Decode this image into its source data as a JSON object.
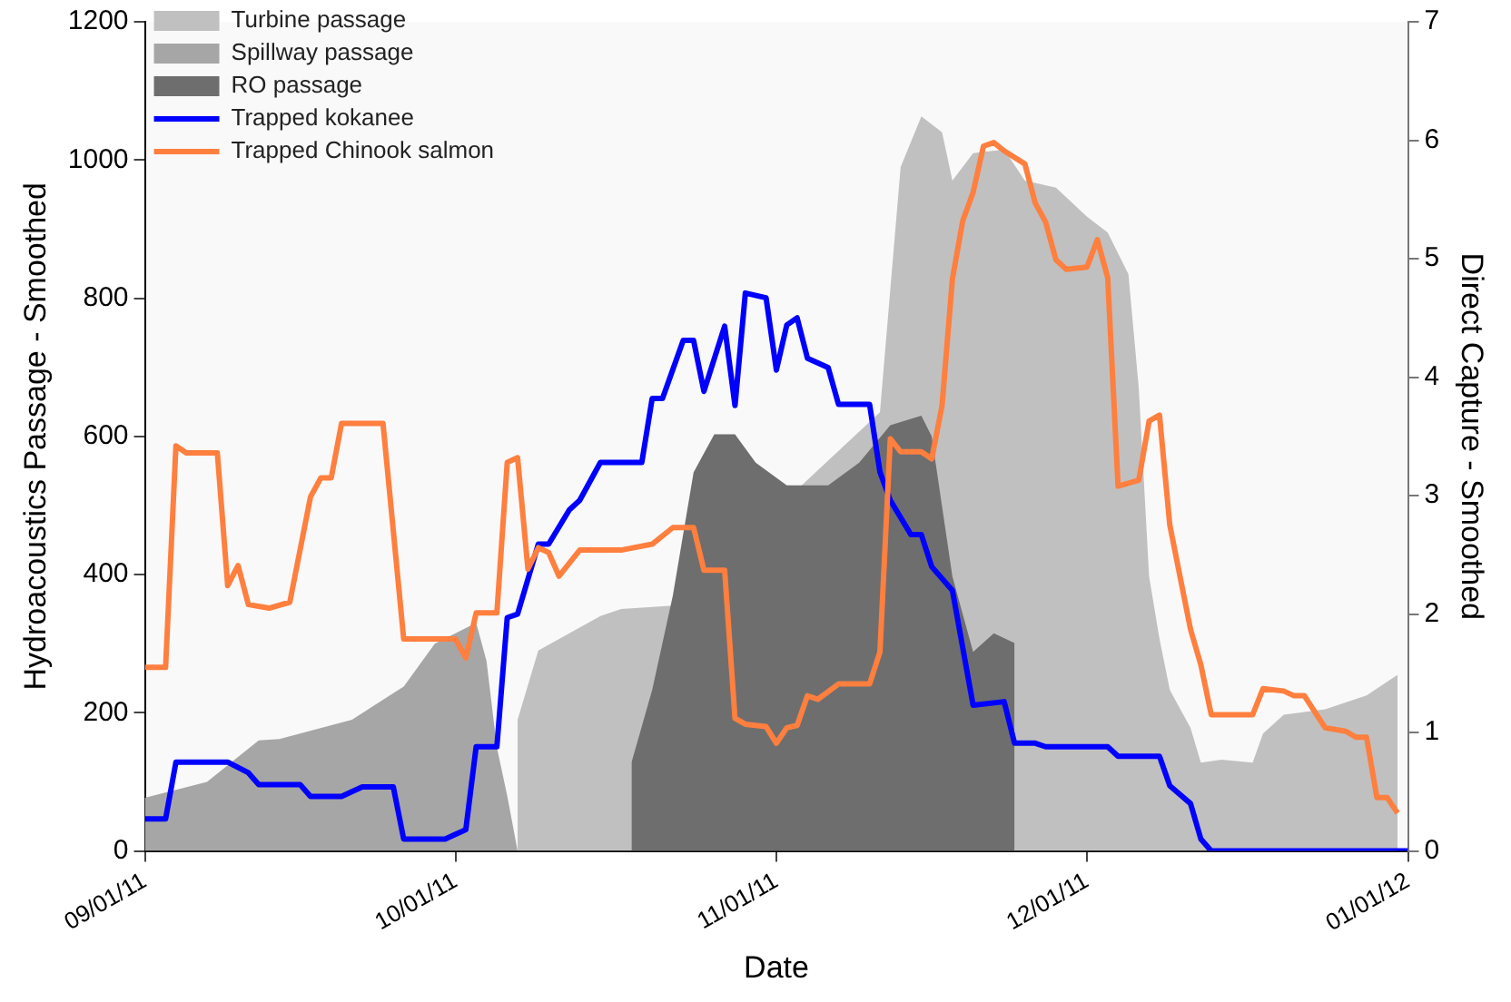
{
  "chart_data": {
    "type": "area",
    "xlabel": "Date",
    "ylabel": "Hydroacoustics Passage - Smoothed",
    "y2label": "Direct Capture - Smoothed",
    "xlim": [
      "2011-09-01",
      "2012-01-01"
    ],
    "xticks": [
      {
        "value": "2011-09-01",
        "label": "09/01/11"
      },
      {
        "value": "2011-10-01",
        "label": "10/01/11"
      },
      {
        "value": "2011-11-01",
        "label": "11/01/11"
      },
      {
        "value": "2011-12-01",
        "label": "12/01/11"
      },
      {
        "value": "2012-01-01",
        "label": "01/01/12"
      }
    ],
    "ylim": [
      0,
      1200
    ],
    "yticks": [
      0,
      200,
      400,
      600,
      800,
      1000,
      1200
    ],
    "y2lim": [
      0,
      7
    ],
    "y2ticks": [
      0,
      1,
      2,
      3,
      4,
      5,
      6,
      7
    ],
    "grid": false,
    "legend": "top left",
    "series": [
      {
        "name": "Turbine passage",
        "color": "#c0c0c0",
        "x": [
          "2011-10-07",
          "2011-10-09",
          "2011-10-12",
          "2011-10-15",
          "2011-10-17",
          "2011-10-22",
          "2011-11-11",
          "2011-11-13",
          "2011-11-15",
          "2011-11-17",
          "2011-11-18",
          "2011-11-20",
          "2011-11-23",
          "2011-11-25",
          "2011-11-28",
          "2011-12-01",
          "2011-12-03",
          "2011-12-05",
          "2011-12-06",
          "2011-12-07",
          "2011-12-08",
          "2011-12-09",
          "2011-12-11",
          "2011-12-12",
          "2011-12-14",
          "2011-12-17",
          "2011-12-18",
          "2011-12-20",
          "2011-12-24",
          "2011-12-28",
          "2011-12-31"
        ],
        "values": [
          190,
          290,
          315,
          340,
          350,
          355,
          635,
          990,
          1063,
          1040,
          970,
          1010,
          1015,
          970,
          960,
          918,
          895,
          835,
          670,
          397,
          307,
          233,
          178,
          128,
          132,
          128,
          170,
          197,
          205,
          225,
          255
        ]
      },
      {
        "name": "Spillway passage",
        "color": "#a6a6a6",
        "x": [
          "2011-09-01",
          "2011-09-07",
          "2011-09-12",
          "2011-09-14",
          "2011-09-21",
          "2011-09-26",
          "2011-09-29",
          "2011-10-03",
          "2011-10-04",
          "2011-10-05",
          "2011-10-06",
          "2011-10-07"
        ],
        "values": [
          77,
          100,
          160,
          162,
          190,
          238,
          300,
          330,
          275,
          150,
          80,
          0
        ]
      },
      {
        "name": "RO passage",
        "color": "#6e6e6e",
        "x": [
          "2011-10-18",
          "2011-10-20",
          "2011-10-22",
          "2011-10-24",
          "2011-10-26",
          "2011-10-28",
          "2011-10-30",
          "2011-11-02",
          "2011-11-06",
          "2011-11-09",
          "2011-11-12",
          "2011-11-15",
          "2011-11-16",
          "2011-11-18",
          "2011-11-20",
          "2011-11-22",
          "2011-11-24"
        ],
        "values": [
          128,
          233,
          370,
          548,
          603,
          603,
          562,
          529,
          529,
          562,
          616,
          630,
          600,
          397,
          288,
          315,
          301
        ]
      },
      {
        "name": "Trapped kokanee",
        "type": "line",
        "axis": "y2",
        "color": "#0000ff",
        "x": [
          "2011-09-01",
          "2011-09-03",
          "2011-09-04",
          "2011-09-09",
          "2011-09-11",
          "2011-09-12",
          "2011-09-16",
          "2011-09-17",
          "2011-09-20",
          "2011-09-22",
          "2011-09-25",
          "2011-09-26",
          "2011-09-30",
          "2011-10-01",
          "2011-10-02",
          "2011-10-03",
          "2011-10-05",
          "2011-10-06",
          "2011-10-07",
          "2011-10-09",
          "2011-10-10",
          "2011-10-12",
          "2011-10-13",
          "2011-10-15",
          "2011-10-19",
          "2011-10-20",
          "2011-10-21",
          "2011-10-23",
          "2011-10-24",
          "2011-10-25",
          "2011-10-27",
          "2011-10-28",
          "2011-10-29",
          "2011-10-31",
          "2011-11-01",
          "2011-11-02",
          "2011-11-03",
          "2011-11-04",
          "2011-11-06",
          "2011-11-07",
          "2011-11-10",
          "2011-11-11",
          "2011-11-12",
          "2011-11-14",
          "2011-11-15",
          "2011-11-16",
          "2011-11-18",
          "2011-11-20",
          "2011-11-23",
          "2011-11-24",
          "2011-11-26",
          "2011-11-27",
          "2011-12-03",
          "2011-12-04",
          "2011-12-08",
          "2011-12-09",
          "2011-12-11",
          "2011-12-12",
          "2011-12-13",
          "2012-01-01"
        ],
        "values": [
          0.27,
          0.27,
          0.75,
          0.75,
          0.66,
          0.56,
          0.56,
          0.46,
          0.46,
          0.54,
          0.54,
          0.1,
          0.1,
          0.14,
          0.18,
          0.88,
          0.88,
          1.97,
          2.0,
          2.59,
          2.59,
          2.88,
          2.96,
          3.28,
          3.28,
          3.82,
          3.82,
          4.31,
          4.31,
          3.88,
          4.43,
          3.76,
          4.71,
          4.67,
          4.06,
          4.44,
          4.5,
          4.16,
          4.08,
          3.77,
          3.77,
          3.2,
          2.96,
          2.67,
          2.67,
          2.4,
          2.2,
          1.23,
          1.26,
          0.91,
          0.91,
          0.88,
          0.88,
          0.8,
          0.8,
          0.55,
          0.4,
          0.1,
          0,
          0
        ]
      },
      {
        "name": "Trapped Chinook salmon",
        "type": "line",
        "axis": "y2",
        "color": "#ff7f3f",
        "x": [
          "2011-09-01",
          "2011-09-03",
          "2011-09-04",
          "2011-09-05",
          "2011-09-08",
          "2011-09-09",
          "2011-09-10",
          "2011-09-11",
          "2011-09-13",
          "2011-09-15",
          "2011-09-17",
          "2011-09-18",
          "2011-09-19",
          "2011-09-20",
          "2011-09-24",
          "2011-09-26",
          "2011-10-01",
          "2011-10-02",
          "2011-10-03",
          "2011-10-05",
          "2011-10-06",
          "2011-10-07",
          "2011-10-08",
          "2011-10-09",
          "2011-10-10",
          "2011-10-11",
          "2011-10-13",
          "2011-10-17",
          "2011-10-20",
          "2011-10-22",
          "2011-10-24",
          "2011-10-25",
          "2011-10-27",
          "2011-10-28",
          "2011-10-29",
          "2011-10-31",
          "2011-11-01",
          "2011-11-02",
          "2011-11-03",
          "2011-11-04",
          "2011-11-05",
          "2011-11-07",
          "2011-11-10",
          "2011-11-11",
          "2011-11-12",
          "2011-11-13",
          "2011-11-15",
          "2011-11-16",
          "2011-11-17",
          "2011-11-18",
          "2011-11-19",
          "2011-11-20",
          "2011-11-21",
          "2011-11-22",
          "2011-11-23",
          "2011-11-25",
          "2011-11-26",
          "2011-11-27",
          "2011-11-28",
          "2011-11-29",
          "2011-12-01",
          "2011-12-02",
          "2011-12-03",
          "2011-12-04",
          "2011-12-06",
          "2011-12-07",
          "2011-12-08",
          "2011-12-09",
          "2011-12-11",
          "2011-12-12",
          "2011-12-13",
          "2011-12-17",
          "2011-12-18",
          "2011-12-20",
          "2011-12-21",
          "2011-12-22",
          "2011-12-24",
          "2011-12-26",
          "2011-12-27",
          "2011-12-28",
          "2011-12-29",
          "2011-12-30",
          "2011-12-31"
        ],
        "values": [
          1.55,
          1.55,
          3.42,
          3.36,
          3.36,
          2.24,
          2.41,
          2.08,
          2.05,
          2.1,
          2.99,
          3.15,
          3.15,
          3.61,
          3.61,
          1.79,
          1.79,
          1.63,
          2.01,
          2.01,
          3.28,
          3.32,
          2.38,
          2.56,
          2.52,
          2.32,
          2.54,
          2.54,
          2.59,
          2.73,
          2.73,
          2.37,
          2.37,
          1.12,
          1.07,
          1.05,
          0.91,
          1.04,
          1.06,
          1.31,
          1.28,
          1.41,
          1.41,
          1.68,
          3.48,
          3.37,
          3.37,
          3.31,
          3.76,
          4.83,
          5.32,
          5.56,
          5.95,
          5.98,
          5.91,
          5.8,
          5.47,
          5.31,
          4.99,
          4.91,
          4.93,
          5.16,
          4.84,
          3.08,
          3.13,
          3.63,
          3.68,
          2.75,
          1.87,
          1.57,
          1.15,
          1.15,
          1.37,
          1.35,
          1.31,
          1.31,
          1.04,
          1.01,
          0.96,
          0.96,
          0.45,
          0.45,
          0.32
        ]
      }
    ]
  }
}
